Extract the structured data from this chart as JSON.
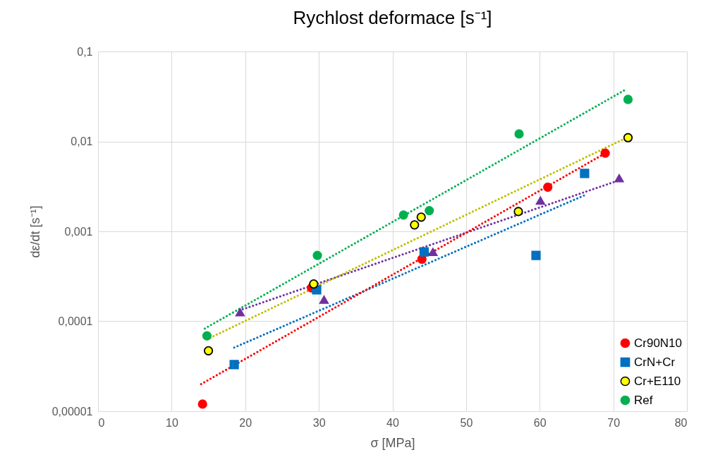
{
  "chart_data": {
    "type": "scatter",
    "title": "Rychlost deformace [s⁻¹]",
    "xlabel": "σ [MPa]",
    "ylabel": "dε/dt [s⁻¹]",
    "xlim": [
      0,
      80
    ],
    "xticks": [
      0,
      10,
      20,
      30,
      40,
      50,
      60,
      70,
      80
    ],
    "ylim": [
      1e-05,
      0.1
    ],
    "yticks": [
      {
        "value": 1e-05,
        "label": "0,00001"
      },
      {
        "value": 0.0001,
        "label": "0,0001"
      },
      {
        "value": 0.001,
        "label": "0,001"
      },
      {
        "value": 0.01,
        "label": "0,01"
      },
      {
        "value": 0.1,
        "label": "0,1"
      }
    ],
    "log": "y",
    "grid": true,
    "legend": "bottom right",
    "series": [
      {
        "name": "Cr90N10",
        "marker": "circle",
        "color": "#ff0000",
        "x": [
          14.2,
          29.0,
          44.0,
          61.1,
          68.9
        ],
        "values": [
          1.2e-05,
          0.000235,
          0.00049,
          0.0031,
          0.0074
        ]
      },
      {
        "name": "CrN+Cr",
        "marker": "square",
        "color": "#0070c0",
        "x": [
          18.5,
          29.7,
          44.3,
          59.5,
          66.1
        ],
        "values": [
          3.3e-05,
          0.000224,
          0.00059,
          0.00054,
          0.0044
        ]
      },
      {
        "name": "Cr+E110",
        "marker": "circle",
        "color": "#ffff00",
        "x": [
          15.0,
          29.3,
          43.0,
          43.9,
          57.1,
          72.0
        ],
        "values": [
          4.7e-05,
          0.00026,
          0.00118,
          0.00144,
          0.00166,
          0.011
        ]
      },
      {
        "marker": "triangle",
        "color": "#7030a0",
        "x": [
          19.3,
          30.7,
          45.5,
          60.1,
          70.8
        ],
        "values": [
          0.000126,
          0.000174,
          0.00059,
          0.0022,
          0.0039
        ]
      },
      {
        "name": "Ref",
        "marker": "circle",
        "color": "#00b050",
        "x": [
          14.8,
          29.8,
          41.5,
          45.0,
          57.2,
          72.0
        ],
        "values": [
          6.9e-05,
          0.00054,
          0.00152,
          0.0017,
          0.0121,
          0.0293
        ]
      },
      {
        "type": "line",
        "marker": "none",
        "line_style": "dotted",
        "color": "#ff0000",
        "x": [
          14.0,
          68.8
        ],
        "values": [
          2e-05,
          0.0073
        ]
      },
      {
        "type": "line",
        "marker": "none",
        "line_style": "dotted",
        "color": "#0070c0",
        "x": [
          18.5,
          66.0
        ],
        "values": [
          5.1e-05,
          0.0025
        ]
      },
      {
        "type": "line",
        "marker": "none",
        "line_style": "dotted",
        "color": "#bfbf00",
        "x": [
          14.8,
          72.0
        ],
        "values": [
          6.3e-05,
          0.0112
        ]
      },
      {
        "type": "line",
        "marker": "none",
        "line_style": "dotted",
        "color": "#7030a0",
        "x": [
          19.2,
          70.8
        ],
        "values": [
          0.000132,
          0.0037
        ]
      },
      {
        "type": "line",
        "marker": "none",
        "line_style": "dotted",
        "color": "#00b050",
        "x": [
          14.5,
          71.5
        ],
        "values": [
          8.3e-05,
          0.037
        ]
      }
    ]
  }
}
